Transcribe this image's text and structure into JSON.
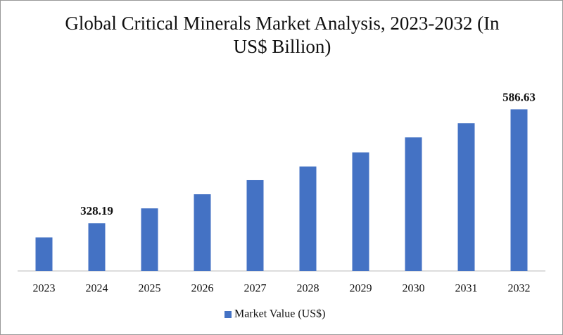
{
  "chart_data": {
    "type": "bar",
    "title": "Global Critical Minerals Market Analysis, 2023-2032 (In US$ Billion)",
    "categories": [
      "2023",
      "2024",
      "2025",
      "2026",
      "2027",
      "2028",
      "2029",
      "2030",
      "2031",
      "2032"
    ],
    "series": [
      {
        "name": "Market Value (US$)",
        "color": "#4472c4",
        "values": [
          296,
          328.19,
          362,
          394,
          426,
          457,
          489,
          523,
          555,
          586.63
        ],
        "value_labels": [
          null,
          "328.19",
          null,
          null,
          null,
          null,
          null,
          null,
          null,
          "586.63"
        ]
      }
    ],
    "ylim": [
      220,
      600
    ],
    "legend": "bottom"
  }
}
